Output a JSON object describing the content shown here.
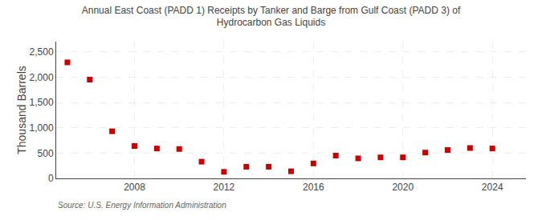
{
  "chart_data": {
    "type": "scatter",
    "title": "Annual East Coast (PADD 1) Receipts by Tanker and Barge from Gulf Coast (PADD 3) of\nHydrocarbon Gas Liquids",
    "ylabel": "Thousand Barrels",
    "annotations": [
      "Source: U.S. Energy Information Administration"
    ],
    "x": [
      2005,
      2006,
      2007,
      2008,
      2009,
      2010,
      2011,
      2012,
      2013,
      2014,
      2015,
      2016,
      2017,
      2018,
      2019,
      2020,
      2021,
      2022,
      2023,
      2024
    ],
    "values": [
      2290,
      1950,
      930,
      640,
      590,
      580,
      330,
      130,
      230,
      230,
      140,
      295,
      450,
      395,
      415,
      415,
      510,
      560,
      600,
      590
    ],
    "color": "#cc0000",
    "marker": "square",
    "xlim": [
      2004.5,
      2025.5
    ],
    "xticks": [
      2008,
      2012,
      2016,
      2020,
      2024
    ],
    "ylim": [
      0,
      2700
    ],
    "yticks": [
      0,
      500,
      {
        "value": 1000,
        "label": "1,000"
      },
      {
        "value": 1500,
        "label": "1,500"
      },
      {
        "value": 2000,
        "label": "2,000"
      },
      {
        "value": 2500,
        "label": "2,500"
      }
    ],
    "grid": true
  }
}
